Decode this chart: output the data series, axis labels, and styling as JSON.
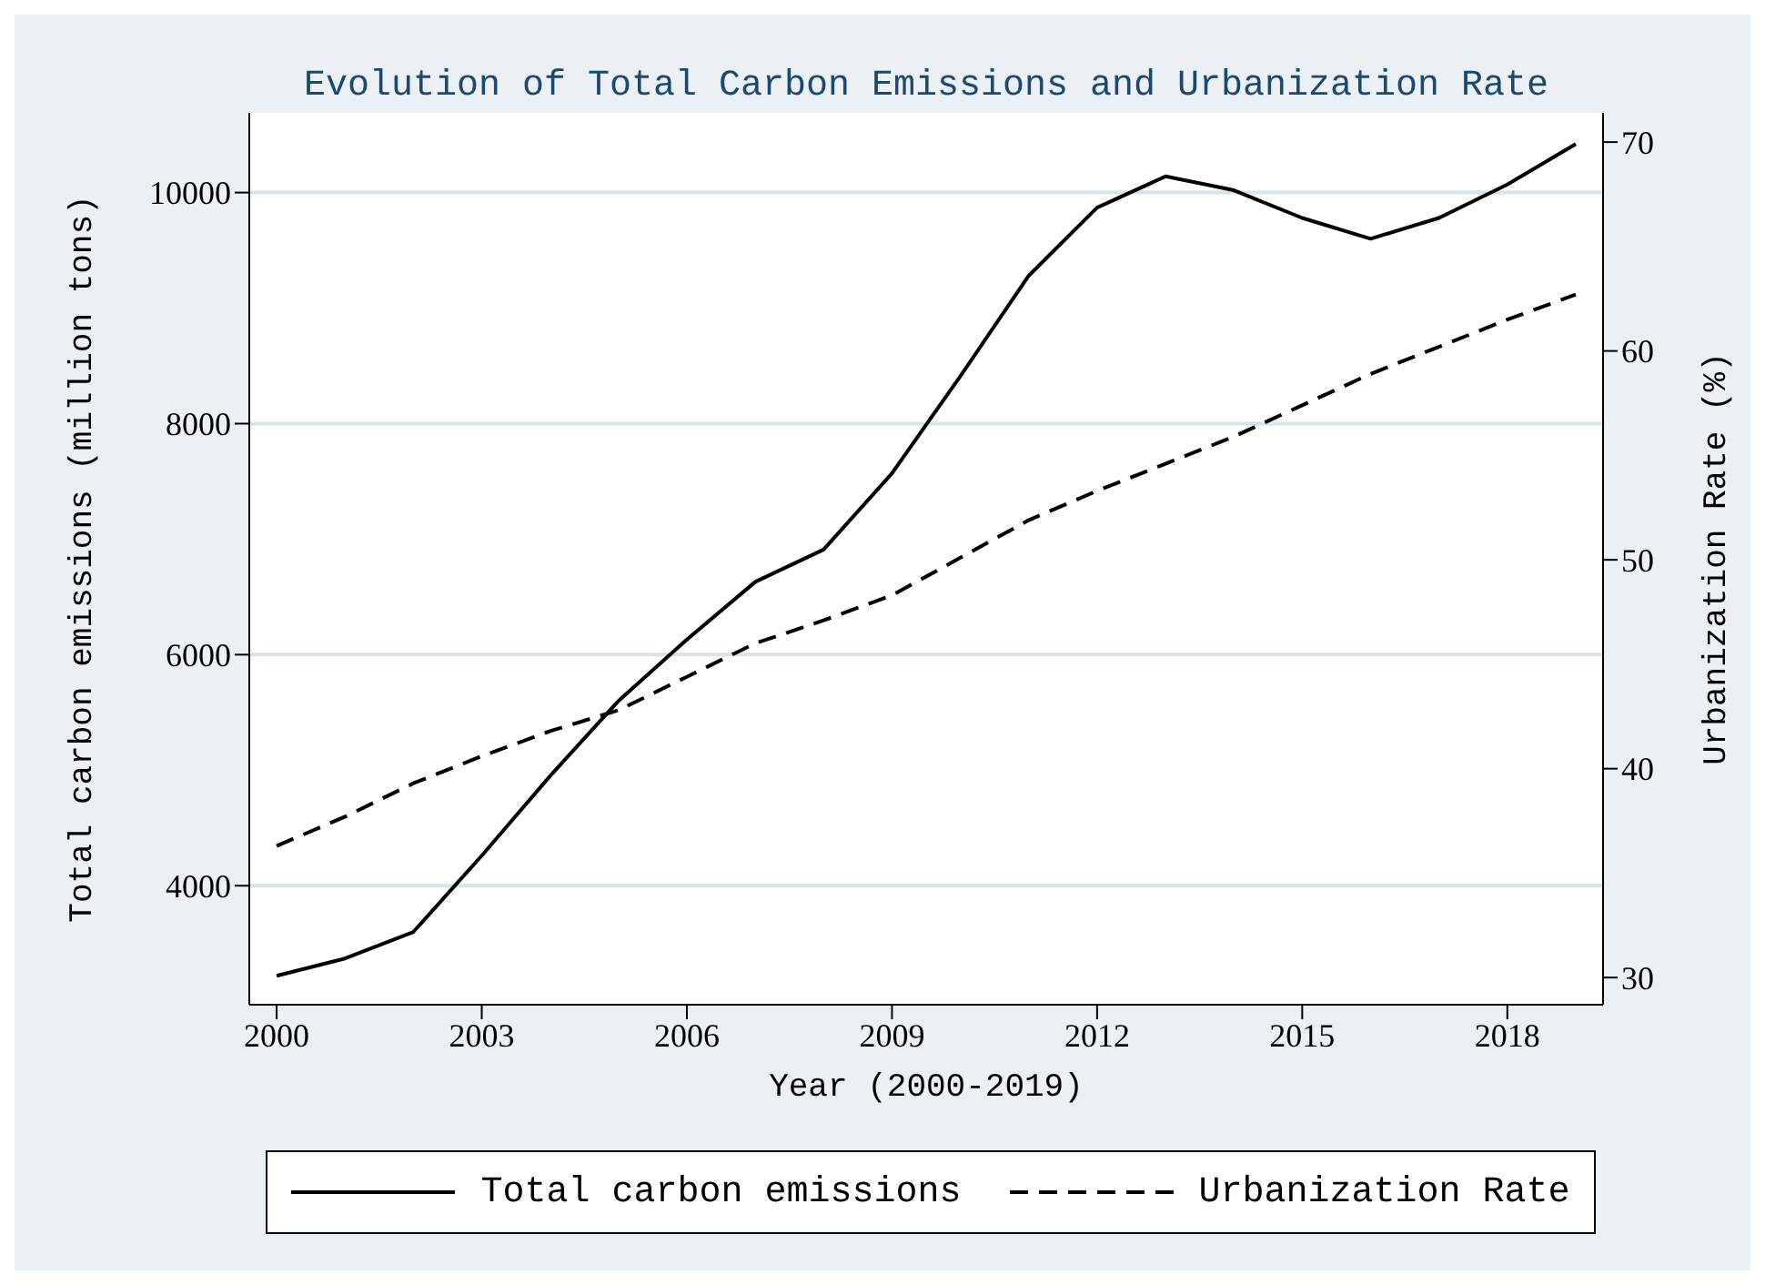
{
  "chart_data": {
    "type": "line",
    "title": "Evolution of Total Carbon Emissions and Urbanization Rate",
    "xlabel": "Year (2000-2019)",
    "ylabel": "Total carbon emissions (million tons)",
    "y2label": "Urbanization Rate (%)",
    "x": [
      2000,
      2001,
      2002,
      2003,
      2004,
      2005,
      2006,
      2007,
      2008,
      2009,
      2010,
      2011,
      2012,
      2013,
      2014,
      2015,
      2016,
      2017,
      2018,
      2019
    ],
    "series": [
      {
        "name": "Total carbon emissions",
        "color": "#000000",
        "line_style": "solid",
        "values": [
          3220,
          3370,
          3600,
          4260,
          4950,
          5600,
          6130,
          6630,
          6910,
          7570,
          8410,
          9280,
          9870,
          10140,
          10020,
          9780,
          9600,
          9780,
          10070,
          10420
        ]
      },
      {
        "name": "Urbanization Rate",
        "color": "#000000",
        "line_style": "dashed",
        "axis": "y2",
        "values": [
          36.3,
          37.7,
          39.3,
          40.6,
          41.8,
          42.8,
          44.4,
          46.0,
          47.1,
          48.3,
          50.1,
          51.9,
          53.3,
          54.6,
          55.9,
          57.4,
          58.9,
          60.2,
          61.5,
          62.7
        ]
      }
    ],
    "xlim": [
      1999.6,
      2019.4
    ],
    "xticks": [
      2000,
      2003,
      2006,
      2009,
      2012,
      2015,
      2018
    ],
    "ylim": [
      2970,
      10690
    ],
    "yticks": [
      4000,
      6000,
      8000,
      10000
    ],
    "y2lim": [
      28.7,
      71.4
    ],
    "y2ticks": [
      30,
      40,
      50,
      60,
      70
    ],
    "grid": "y",
    "legend": "bottom",
    "marker": "none"
  }
}
